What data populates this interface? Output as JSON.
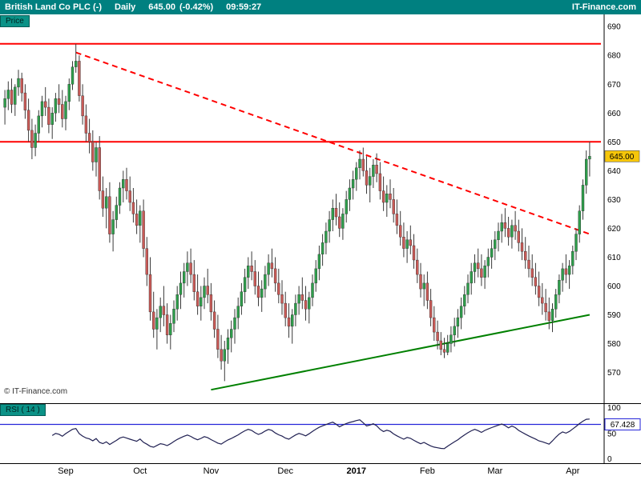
{
  "header": {
    "symbol": "British Land Co PLC (-)",
    "timeframe": "Daily",
    "last_price": "645.00",
    "change": "(-0.42%)",
    "quote_time": "09:59:27",
    "brand": "IT-Finance.com"
  },
  "price_pane": {
    "label": "Price",
    "watermark": "© IT-Finance.com",
    "price_tag": {
      "text": "645.00",
      "value": 645,
      "bg": "#F6C60A"
    }
  },
  "rsi_pane": {
    "label": "RSI ( 14 )",
    "ticks": [
      100,
      50,
      0
    ],
    "value_tag": {
      "text": "67.428",
      "value": 67.428
    }
  },
  "colors": {
    "header_bg": "#008080",
    "tab_bg": "#0B9287",
    "tab_text": "#002220",
    "up": "#2E9E4B",
    "down": "#C95A57",
    "wick": "#3A3A3A",
    "candle_border": "#2F2F2F",
    "resistance": "#FF0000",
    "trend_red": "#FF0000",
    "support_green": "#008000",
    "rsi_line": "#202052",
    "rsi_level": "#2626D9",
    "axis": "#000000"
  },
  "chart_data": {
    "type": "candlestick",
    "title": "British Land Co PLC (-) Daily",
    "price": {
      "type": "candlestick",
      "ylabel": "Price",
      "ylim": [
        566,
        692
      ],
      "y_ticks": [
        690,
        680,
        670,
        660,
        650,
        640,
        630,
        620,
        610,
        600,
        590,
        580,
        570
      ],
      "month_ticks": [
        {
          "label": "Sep",
          "index": 18
        },
        {
          "label": "Oct",
          "index": 40
        },
        {
          "label": "Nov",
          "index": 61
        },
        {
          "label": "Dec",
          "index": 83
        },
        {
          "label": "2017",
          "index": 104,
          "bold": true
        },
        {
          "label": "Feb",
          "index": 125
        },
        {
          "label": "Mar",
          "index": 145
        },
        {
          "label": "Apr",
          "index": 168
        }
      ],
      "overlays": {
        "resistance_levels": [
          684,
          650
        ],
        "downtrend_line": {
          "from_index": 21,
          "from_value": 681,
          "to_index": 173,
          "to_value": 618,
          "style": "dashed"
        },
        "support_line": {
          "from_index": 61,
          "from_value": 564,
          "to_index": 173,
          "to_value": 590,
          "style": "solid"
        }
      },
      "candles": [
        [
          662,
          668,
          656,
          665
        ],
        [
          665,
          671,
          661,
          668
        ],
        [
          668,
          672,
          660,
          663
        ],
        [
          663,
          670,
          659,
          669
        ],
        [
          669,
          675,
          666,
          672
        ],
        [
          672,
          674,
          664,
          667
        ],
        [
          667,
          670,
          658,
          661
        ],
        [
          661,
          665,
          650,
          654
        ],
        [
          654,
          658,
          644,
          648
        ],
        [
          648,
          656,
          645,
          653
        ],
        [
          653,
          661,
          650,
          659
        ],
        [
          659,
          666,
          655,
          664
        ],
        [
          664,
          669,
          659,
          662
        ],
        [
          662,
          665,
          653,
          656
        ],
        [
          656,
          662,
          651,
          660
        ],
        [
          660,
          667,
          657,
          665
        ],
        [
          665,
          670,
          660,
          663
        ],
        [
          663,
          668,
          655,
          658
        ],
        [
          658,
          666,
          654,
          664
        ],
        [
          664,
          672,
          661,
          670
        ],
        [
          670,
          678,
          668,
          676
        ],
        [
          676,
          684,
          674,
          678
        ],
        [
          678,
          680,
          664,
          666
        ],
        [
          666,
          670,
          656,
          659
        ],
        [
          659,
          663,
          650,
          653
        ],
        [
          653,
          658,
          646,
          650
        ],
        [
          650,
          654,
          640,
          643
        ],
        [
          643,
          650,
          638,
          648
        ],
        [
          648,
          652,
          630,
          633
        ],
        [
          633,
          638,
          624,
          627
        ],
        [
          627,
          634,
          620,
          631
        ],
        [
          631,
          636,
          615,
          618
        ],
        [
          618,
          626,
          612,
          623
        ],
        [
          623,
          631,
          620,
          628
        ],
        [
          628,
          636,
          625,
          634
        ],
        [
          634,
          640,
          629,
          637
        ],
        [
          637,
          641,
          630,
          633
        ],
        [
          633,
          638,
          626,
          629
        ],
        [
          629,
          634,
          622,
          625
        ],
        [
          625,
          630,
          618,
          621
        ],
        [
          621,
          628,
          615,
          626
        ],
        [
          626,
          630,
          610,
          613
        ],
        [
          613,
          617,
          600,
          604
        ],
        [
          604,
          610,
          588,
          591
        ],
        [
          591,
          598,
          582,
          585
        ],
        [
          585,
          592,
          578,
          589
        ],
        [
          589,
          596,
          584,
          593
        ],
        [
          593,
          600,
          586,
          590
        ],
        [
          590,
          594,
          580,
          583
        ],
        [
          583,
          590,
          578,
          587
        ],
        [
          587,
          595,
          584,
          592
        ],
        [
          592,
          600,
          588,
          597
        ],
        [
          597,
          605,
          592,
          601
        ],
        [
          601,
          608,
          596,
          605
        ],
        [
          605,
          612,
          600,
          608
        ],
        [
          608,
          613,
          601,
          604
        ],
        [
          604,
          609,
          595,
          598
        ],
        [
          598,
          604,
          590,
          593
        ],
        [
          593,
          600,
          588,
          596
        ],
        [
          596,
          603,
          592,
          600
        ],
        [
          600,
          606,
          594,
          597
        ],
        [
          597,
          601,
          588,
          591
        ],
        [
          591,
          595,
          582,
          585
        ],
        [
          585,
          590,
          575,
          578
        ],
        [
          578,
          583,
          571,
          574
        ],
        [
          574,
          581,
          567,
          578
        ],
        [
          578,
          585,
          573,
          582
        ],
        [
          582,
          588,
          577,
          585
        ],
        [
          585,
          592,
          580,
          589
        ],
        [
          589,
          596,
          585,
          593
        ],
        [
          593,
          601,
          590,
          598
        ],
        [
          598,
          606,
          594,
          603
        ],
        [
          603,
          610,
          599,
          607
        ],
        [
          607,
          612,
          602,
          605
        ],
        [
          605,
          609,
          597,
          600
        ],
        [
          600,
          605,
          593,
          596
        ],
        [
          596,
          602,
          591,
          599
        ],
        [
          599,
          607,
          596,
          604
        ],
        [
          604,
          611,
          600,
          608
        ],
        [
          608,
          613,
          603,
          606
        ],
        [
          606,
          610,
          598,
          601
        ],
        [
          601,
          606,
          594,
          597
        ],
        [
          597,
          602,
          590,
          594
        ],
        [
          594,
          598,
          586,
          589
        ],
        [
          589,
          594,
          582,
          586
        ],
        [
          586,
          592,
          580,
          590
        ],
        [
          590,
          597,
          586,
          594
        ],
        [
          594,
          600,
          590,
          597
        ],
        [
          597,
          603,
          592,
          595
        ],
        [
          595,
          600,
          588,
          592
        ],
        [
          592,
          598,
          587,
          596
        ],
        [
          596,
          604,
          593,
          601
        ],
        [
          601,
          609,
          598,
          606
        ],
        [
          606,
          614,
          602,
          611
        ],
        [
          611,
          618,
          607,
          615
        ],
        [
          615,
          622,
          611,
          619
        ],
        [
          619,
          626,
          615,
          623
        ],
        [
          623,
          630,
          619,
          627
        ],
        [
          627,
          632,
          621,
          624
        ],
        [
          624,
          629,
          617,
          620
        ],
        [
          620,
          627,
          616,
          625
        ],
        [
          625,
          633,
          622,
          630
        ],
        [
          630,
          637,
          626,
          634
        ],
        [
          634,
          640,
          630,
          637
        ],
        [
          637,
          643,
          633,
          641
        ],
        [
          641,
          647,
          637,
          644
        ],
        [
          644,
          648,
          638,
          640
        ],
        [
          640,
          645,
          632,
          635
        ],
        [
          635,
          641,
          629,
          638
        ],
        [
          638,
          644,
          634,
          642
        ],
        [
          642,
          646,
          636,
          639
        ],
        [
          639,
          643,
          630,
          633
        ],
        [
          633,
          638,
          626,
          629
        ],
        [
          629,
          635,
          624,
          632
        ],
        [
          632,
          637,
          627,
          630
        ],
        [
          630,
          634,
          622,
          625
        ],
        [
          625,
          630,
          618,
          621
        ],
        [
          621,
          626,
          614,
          617
        ],
        [
          617,
          622,
          610,
          613
        ],
        [
          613,
          619,
          608,
          616
        ],
        [
          616,
          621,
          611,
          614
        ],
        [
          614,
          618,
          606,
          609
        ],
        [
          609,
          613,
          601,
          604
        ],
        [
          604,
          608,
          596,
          599
        ],
        [
          599,
          604,
          593,
          601
        ],
        [
          601,
          605,
          592,
          595
        ],
        [
          595,
          599,
          586,
          589
        ],
        [
          589,
          593,
          581,
          584
        ],
        [
          584,
          588,
          578,
          581
        ],
        [
          581,
          584,
          576,
          578
        ],
        [
          578,
          582,
          575,
          577
        ],
        [
          577,
          583,
          576,
          580
        ],
        [
          580,
          586,
          577,
          583
        ],
        [
          583,
          589,
          579,
          586
        ],
        [
          586,
          592,
          582,
          589
        ],
        [
          589,
          596,
          585,
          593
        ],
        [
          593,
          600,
          590,
          597
        ],
        [
          597,
          604,
          594,
          601
        ],
        [
          601,
          608,
          597,
          605
        ],
        [
          605,
          611,
          601,
          608
        ],
        [
          608,
          613,
          603,
          606
        ],
        [
          606,
          611,
          600,
          603
        ],
        [
          603,
          609,
          599,
          607
        ],
        [
          607,
          613,
          603,
          610
        ],
        [
          610,
          616,
          606,
          613
        ],
        [
          613,
          619,
          609,
          616
        ],
        [
          616,
          622,
          612,
          619
        ],
        [
          619,
          625,
          615,
          622
        ],
        [
          622,
          627,
          617,
          620
        ],
        [
          620,
          624,
          614,
          617
        ],
        [
          617,
          623,
          613,
          621
        ],
        [
          621,
          626,
          616,
          619
        ],
        [
          619,
          623,
          612,
          615
        ],
        [
          615,
          620,
          609,
          612
        ],
        [
          612,
          617,
          606,
          609
        ],
        [
          609,
          614,
          603,
          606
        ],
        [
          606,
          611,
          600,
          603
        ],
        [
          603,
          608,
          597,
          600
        ],
        [
          600,
          605,
          593,
          596
        ],
        [
          596,
          601,
          590,
          594
        ],
        [
          594,
          599,
          588,
          591
        ],
        [
          591,
          596,
          585,
          588
        ],
        [
          588,
          594,
          584,
          592
        ],
        [
          592,
          599,
          589,
          597
        ],
        [
          597,
          604,
          594,
          602
        ],
        [
          602,
          608,
          598,
          606
        ],
        [
          606,
          611,
          601,
          604
        ],
        [
          604,
          609,
          599,
          607
        ],
        [
          607,
          614,
          604,
          612
        ],
        [
          612,
          620,
          609,
          618
        ],
        [
          618,
          628,
          615,
          626
        ],
        [
          626,
          637,
          623,
          635
        ],
        [
          635,
          647,
          632,
          644
        ],
        [
          644,
          650,
          638,
          645
        ]
      ]
    },
    "rsi": {
      "type": "line",
      "period": 14,
      "ylim": [
        0,
        100
      ],
      "current": 67.428,
      "derived_from": "close"
    }
  }
}
